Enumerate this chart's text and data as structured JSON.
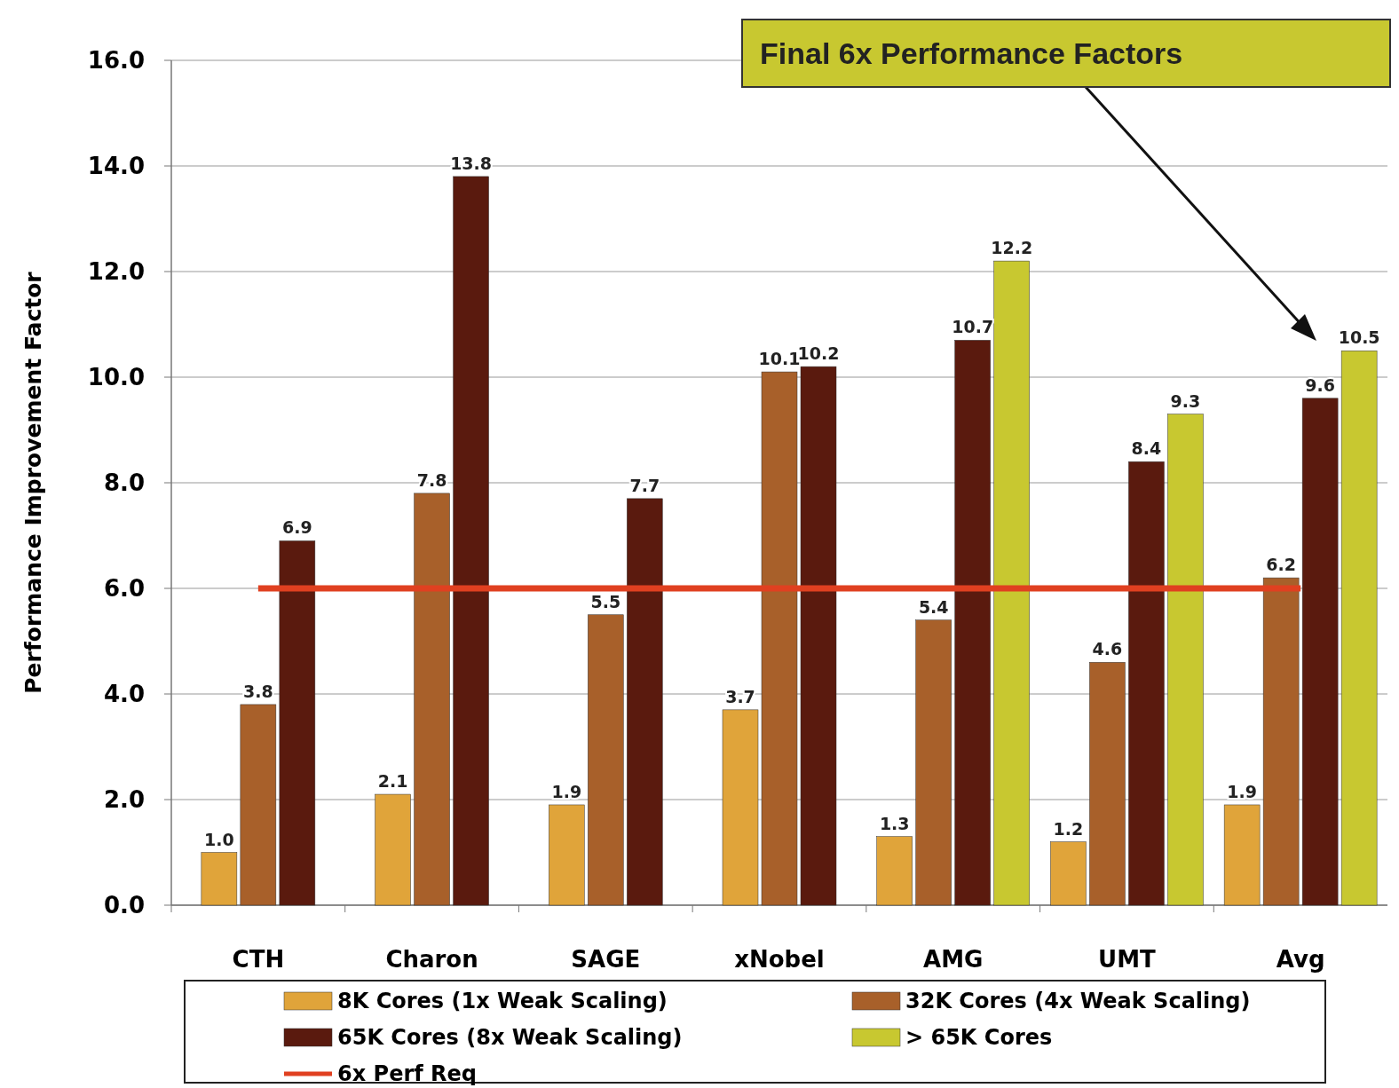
{
  "chart_data": {
    "type": "bar",
    "ylabel": "Performance Improvement Factor",
    "categories": [
      "CTH",
      "Charon",
      "SAGE",
      "xNobel",
      "AMG",
      "UMT",
      "Avg"
    ],
    "series": [
      {
        "name": "8K Cores (1x Weak Scaling)",
        "color": "#e0a43a",
        "values": [
          1.0,
          2.1,
          1.9,
          3.7,
          1.3,
          1.2,
          1.9
        ],
        "value_labels": [
          "1.0",
          "2.1",
          "1.9",
          "3.7",
          "1.3",
          "1.2",
          "1.9"
        ]
      },
      {
        "name": "32K Cores (4x Weak Scaling)",
        "color": "#a8602a",
        "values": [
          3.8,
          7.8,
          5.5,
          10.1,
          5.4,
          4.6,
          6.2
        ],
        "value_labels": [
          "3.8",
          "7.8",
          "5.5",
          "10.1",
          "5.4",
          "4.6",
          "6.2"
        ]
      },
      {
        "name": "65K Cores  (8x Weak Scaling)",
        "color": "#5a1a0e",
        "values": [
          6.9,
          13.8,
          7.7,
          10.2,
          10.7,
          8.4,
          9.6
        ],
        "value_labels": [
          "6.9",
          "13.8",
          "7.7",
          "10.2",
          "10.7",
          "8.4",
          "9.6"
        ]
      },
      {
        "name": "> 65K Cores",
        "color": "#c8c830",
        "values": [
          null,
          null,
          null,
          null,
          12.2,
          9.3,
          10.5
        ],
        "value_labels": [
          null,
          null,
          null,
          null,
          "12.2",
          "9.3",
          "10.5"
        ]
      }
    ],
    "ylim": [
      0,
      16
    ],
    "yticks": [
      {
        "value": 0,
        "label": "0.0"
      },
      {
        "value": 2,
        "label": "2.0"
      },
      {
        "value": 4,
        "label": "4.0"
      },
      {
        "value": 6,
        "label": "6.0"
      },
      {
        "value": 8,
        "label": "8.0"
      },
      {
        "value": 10,
        "label": "10.0"
      },
      {
        "value": 12,
        "label": "12.0"
      },
      {
        "value": 14,
        "label": "14.0"
      },
      {
        "value": 16,
        "label": "16.0"
      }
    ],
    "ref_lines": [
      {
        "axis": "y",
        "value": 6,
        "label": "6x Perf Req",
        "color": "#e04020"
      }
    ],
    "annotations": [
      "Final 6x Performance Factors"
    ],
    "grid": "y",
    "legend": "bottom"
  }
}
